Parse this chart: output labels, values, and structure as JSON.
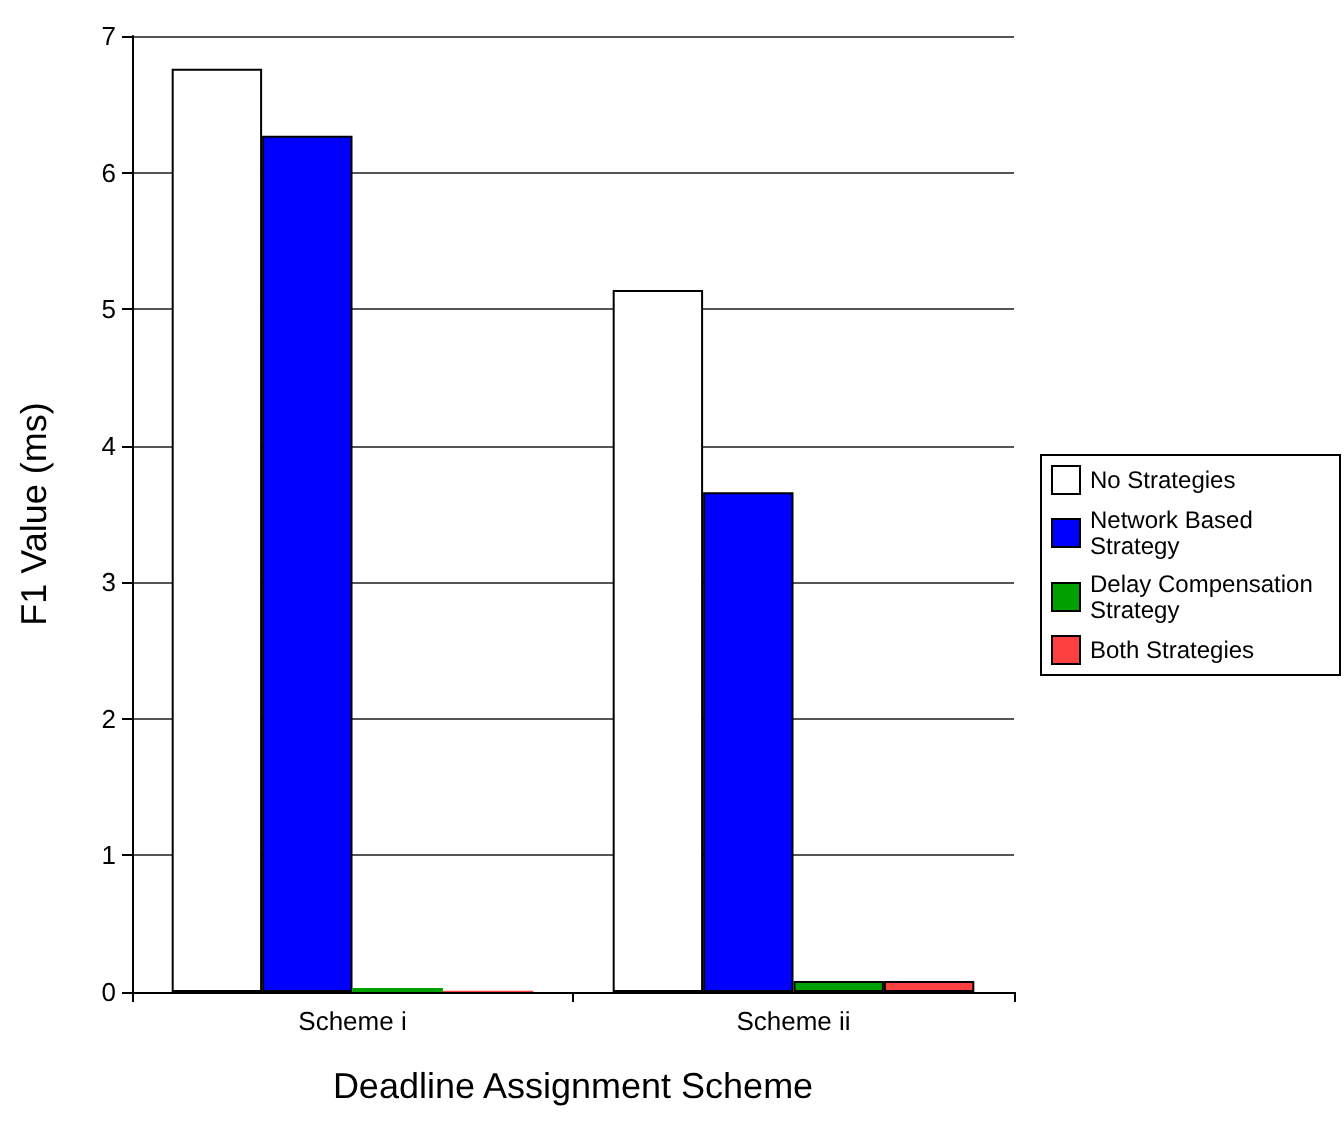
{
  "chart_data": {
    "type": "bar",
    "xlabel": "Deadline Assignment Scheme",
    "ylabel": "F1 Value (ms)",
    "categories": [
      "Scheme i",
      "Scheme ii"
    ],
    "series": [
      {
        "name": "No Strategies",
        "color": "#ffffff",
        "values": [
          6.76,
          5.14
        ]
      },
      {
        "name": "Network Based Strategy",
        "color": "#0000ff",
        "values": [
          6.27,
          3.66
        ]
      },
      {
        "name": "Delay Compensation Strategy",
        "color": "#00a000",
        "values": [
          0.03,
          0.08
        ]
      },
      {
        "name": "Both Strategies",
        "color": "#ff4040",
        "values": [
          0.01,
          0.08
        ]
      }
    ],
    "ylim": [
      0,
      7
    ],
    "yticks": [
      0,
      1,
      2,
      3,
      4,
      5,
      6,
      7
    ],
    "grid": "y",
    "legend": "right"
  }
}
